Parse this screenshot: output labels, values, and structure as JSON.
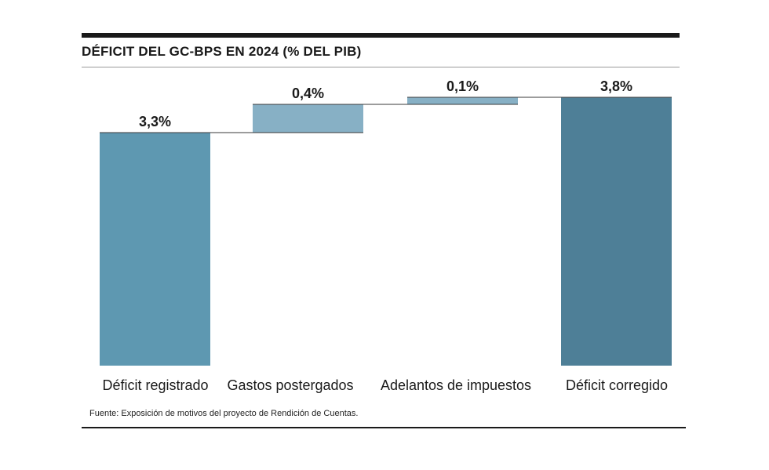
{
  "title": "DÉFICIT DEL GC-BPS EN 2024 (% DEL PIB)",
  "source": "Fuente: Exposición de motivos del proyecto de Rendición de Cuentas.",
  "colors": {
    "bar_registrado": "#5e98b1",
    "bar_step": "#87b0c5",
    "bar_corregido": "#4e7f97",
    "connector": "#3a3a3a",
    "text": "#1a1a1a"
  },
  "chart_data": {
    "type": "bar",
    "subtype": "waterfall",
    "categories": [
      "Déficit registrado",
      "Gastos postergados",
      "Adelantos de impuestos",
      "Déficit  corregido"
    ],
    "values": [
      3.3,
      0.4,
      0.1,
      3.8
    ],
    "value_labels": [
      "3,3%",
      "0,4%",
      "0,1%",
      "3,8%"
    ],
    "bar_kinds": [
      "total",
      "increment",
      "increment",
      "total"
    ],
    "ylim": [
      0,
      3.8
    ],
    "grid": false,
    "legend": false
  }
}
